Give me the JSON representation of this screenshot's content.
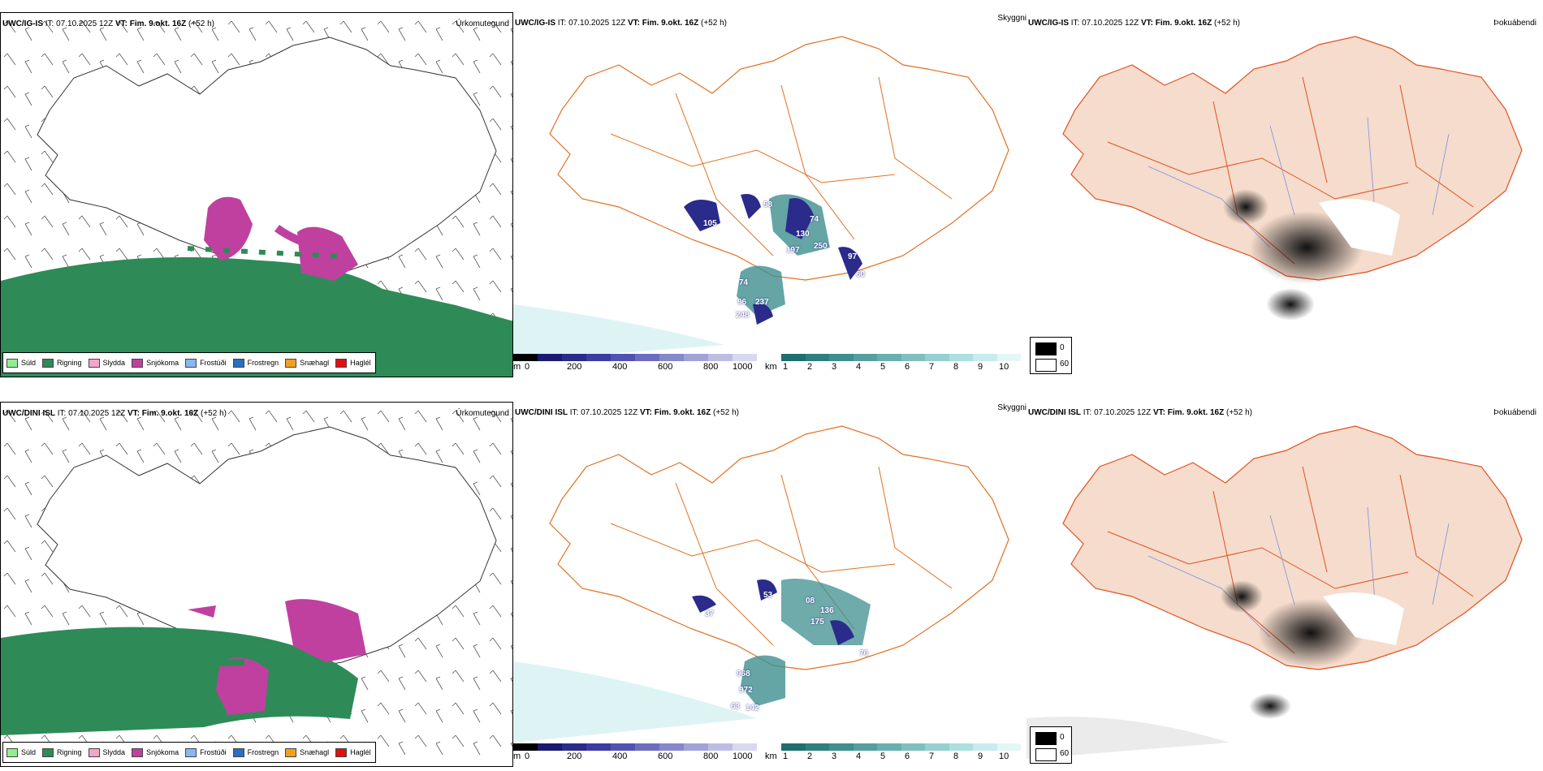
{
  "rows": [
    {
      "model": "UWC/IG-IS",
      "it": "IT: 07.10.2025 12Z",
      "vt_label": "VT:",
      "vt": "Fim. 9.okt. 16Z",
      "lead": "(+52 h)",
      "cloud_labels": [
        "58",
        "105",
        "74",
        "130",
        "250",
        "197",
        "97",
        "60",
        "74",
        "96",
        "237",
        "248"
      ]
    },
    {
      "model": "UWC/DINI ISL",
      "it": "IT: 07.10.2025 12Z",
      "vt_label": "VT:",
      "vt": "Fim. 9.okt. 16Z",
      "lead": "(+52 h)",
      "cloud_labels": [
        "53",
        "37",
        "08",
        "136",
        "175",
        "76",
        "968",
        "972",
        "63",
        "142"
      ]
    }
  ],
  "panel_titles": {
    "precip": "Úrkomutegund",
    "vis": "Skyggni",
    "fog": "Þokuábendi"
  },
  "precip_legend": [
    {
      "label": "Súld",
      "color": "#90ee90"
    },
    {
      "label": "Rigning",
      "color": "#2e8b57"
    },
    {
      "label": "Slydda",
      "color": "#f4a6c8"
    },
    {
      "label": "Snjókoma",
      "color": "#c040a0"
    },
    {
      "label": "Frostúði",
      "color": "#87b8f0"
    },
    {
      "label": "Frostregn",
      "color": "#2a6fc0"
    },
    {
      "label": "Snæhagl",
      "color": "#f0a020"
    },
    {
      "label": "Haglél",
      "color": "#e01010"
    }
  ],
  "cloudbase_bar": {
    "unit": "m",
    "ticks": [
      "0",
      "200",
      "400",
      "600",
      "800",
      "1000"
    ],
    "colors": [
      "#000000",
      "#1a1a70",
      "#2b2b8c",
      "#3c3ca4",
      "#5252b4",
      "#6d6dc0",
      "#8787cc",
      "#a2a2d8",
      "#bdbde4",
      "#d8d8f0"
    ]
  },
  "visibility_bar": {
    "unit": "km",
    "ticks": [
      "1",
      "2",
      "3",
      "4",
      "5",
      "6",
      "7",
      "8",
      "9",
      "10"
    ],
    "colors": [
      "#1f6f6f",
      "#2f7f7f",
      "#3f8f8f",
      "#559f9f",
      "#6aafaf",
      "#80bfbf",
      "#96cfcf",
      "#acdfdf",
      "#c8ecec",
      "#e4f6f6"
    ]
  },
  "fog_legend": [
    {
      "label": "0",
      "color": "#000000"
    },
    {
      "label": "60",
      "color": "#ffffff"
    }
  ]
}
